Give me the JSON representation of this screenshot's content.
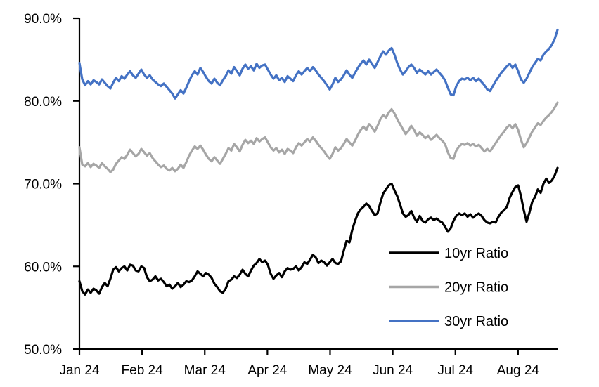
{
  "chart_data": {
    "type": "line",
    "title": "",
    "xlabel": "",
    "ylabel": "",
    "x_axis": {
      "unit": "trading days, Jan 2024 through late Aug 2024, uniform spacing",
      "range_months": [
        0,
        7.63
      ],
      "ticks": [
        {
          "month_index": 0,
          "label": "Jan 24"
        },
        {
          "month_index": 1,
          "label": "Feb 24"
        },
        {
          "month_index": 2,
          "label": "Mar 24"
        },
        {
          "month_index": 3,
          "label": "Apr 24"
        },
        {
          "month_index": 4,
          "label": "May 24"
        },
        {
          "month_index": 5,
          "label": "Jun 24"
        },
        {
          "month_index": 6,
          "label": "Jul 24"
        },
        {
          "month_index": 7,
          "label": "Aug 24"
        }
      ]
    },
    "y_axis": {
      "ylim": [
        50,
        90
      ],
      "ticks": [
        {
          "value": 50,
          "label": "50.0%"
        },
        {
          "value": 60,
          "label": "60.0%"
        },
        {
          "value": 70,
          "label": "70.0%"
        },
        {
          "value": 80,
          "label": "80.0%"
        },
        {
          "value": 90,
          "label": "90.0%"
        }
      ],
      "grid": false
    },
    "legend": {
      "position": "inside lower right",
      "entries": [
        {
          "name": "10yr Ratio",
          "color": "#000000"
        },
        {
          "name": "20yr Ratio",
          "color": "#A6A6A6"
        },
        {
          "name": "30yr Ratio",
          "color": "#4472C4"
        }
      ]
    },
    "series": [
      {
        "name": "10yr Ratio",
        "color": "#000000",
        "values": [
          58.2,
          57.0,
          56.6,
          57.2,
          56.8,
          57.3,
          57.1,
          56.7,
          57.5,
          58.0,
          57.6,
          58.5,
          59.6,
          59.9,
          59.4,
          59.8,
          60.0,
          59.5,
          60.2,
          60.1,
          59.5,
          59.4,
          60.0,
          59.8,
          58.7,
          58.2,
          58.4,
          58.8,
          58.3,
          58.5,
          58.1,
          57.6,
          57.8,
          57.3,
          57.6,
          58.0,
          57.5,
          57.8,
          58.2,
          58.1,
          58.3,
          58.8,
          59.4,
          59.1,
          58.8,
          59.2,
          59.0,
          58.6,
          57.9,
          57.5,
          57.0,
          56.8,
          57.3,
          58.2,
          58.4,
          58.8,
          58.6,
          59.0,
          59.6,
          59.1,
          58.8,
          59.5,
          60.1,
          60.4,
          60.9,
          60.5,
          60.7,
          60.2,
          59.1,
          58.5,
          58.9,
          59.2,
          58.7,
          59.4,
          59.8,
          59.6,
          59.7,
          60.0,
          59.5,
          59.9,
          60.5,
          60.3,
          60.8,
          61.4,
          61.1,
          60.4,
          60.7,
          60.5,
          60.1,
          60.5,
          60.9,
          60.4,
          60.3,
          60.6,
          61.9,
          63.1,
          62.9,
          64.4,
          65.5,
          66.4,
          66.9,
          67.2,
          67.6,
          67.3,
          66.7,
          66.2,
          66.4,
          67.7,
          68.8,
          69.3,
          69.8,
          70.0,
          69.2,
          68.5,
          67.5,
          66.4,
          66.0,
          66.2,
          66.7,
          65.9,
          65.4,
          66.1,
          65.5,
          65.3,
          65.7,
          65.9,
          65.6,
          65.8,
          65.5,
          65.3,
          64.8,
          64.2,
          64.6,
          65.5,
          66.1,
          66.4,
          66.2,
          66.4,
          66.0,
          66.3,
          65.9,
          66.2,
          66.4,
          66.1,
          65.6,
          65.3,
          65.2,
          65.4,
          65.3,
          66.0,
          66.5,
          66.8,
          67.2,
          68.3,
          69.0,
          69.6,
          69.8,
          68.5,
          66.8,
          65.4,
          66.5,
          67.8,
          68.4,
          69.3,
          68.9,
          70.0,
          70.6,
          70.1,
          70.4,
          71.0,
          71.9
        ]
      },
      {
        "name": "20yr Ratio",
        "color": "#A6A6A6",
        "values": [
          74.4,
          72.3,
          72.1,
          72.5,
          72.0,
          72.4,
          72.2,
          71.9,
          72.5,
          72.1,
          71.8,
          71.4,
          71.7,
          72.4,
          72.8,
          73.2,
          73.0,
          73.5,
          74.1,
          73.7,
          73.3,
          73.6,
          74.2,
          73.8,
          73.4,
          73.7,
          73.1,
          72.7,
          72.3,
          72.0,
          72.2,
          71.8,
          71.6,
          71.9,
          71.5,
          71.8,
          72.3,
          71.9,
          72.6,
          73.4,
          74.0,
          74.5,
          74.2,
          74.6,
          74.1,
          73.5,
          73.0,
          72.7,
          73.2,
          72.8,
          72.4,
          73.0,
          73.6,
          74.3,
          74.0,
          74.8,
          74.4,
          73.9,
          74.7,
          75.3,
          74.9,
          75.2,
          74.8,
          75.5,
          75.1,
          75.4,
          75.6,
          75.0,
          74.4,
          74.0,
          74.3,
          73.8,
          74.1,
          73.6,
          74.2,
          74.0,
          73.7,
          74.4,
          74.9,
          74.6,
          75.0,
          75.4,
          75.1,
          75.6,
          75.2,
          74.7,
          74.3,
          73.9,
          73.4,
          73.0,
          73.6,
          74.4,
          74.0,
          74.3,
          74.8,
          75.4,
          75.0,
          74.6,
          75.2,
          75.9,
          76.5,
          76.9,
          76.5,
          77.2,
          76.8,
          76.3,
          77.0,
          77.8,
          78.3,
          78.0,
          78.6,
          79.0,
          78.5,
          77.8,
          77.2,
          76.6,
          76.0,
          76.4,
          77.0,
          76.5,
          75.8,
          76.2,
          75.9,
          75.5,
          75.8,
          75.3,
          75.6,
          75.9,
          75.5,
          75.2,
          74.8,
          73.8,
          73.1,
          73.0,
          74.0,
          74.5,
          74.8,
          74.7,
          74.9,
          74.6,
          74.8,
          74.5,
          74.7,
          74.3,
          73.9,
          74.2,
          73.9,
          74.4,
          74.9,
          75.4,
          75.9,
          76.3,
          76.8,
          77.1,
          76.7,
          77.2,
          76.5,
          75.3,
          74.4,
          74.9,
          75.6,
          76.3,
          76.8,
          77.3,
          77.1,
          77.6,
          78.0,
          78.3,
          78.7,
          79.2,
          79.8
        ]
      },
      {
        "name": "30yr Ratio",
        "color": "#4472C4",
        "values": [
          84.6,
          82.6,
          81.9,
          82.4,
          82.0,
          82.5,
          82.3,
          82.0,
          82.6,
          82.2,
          81.8,
          81.5,
          82.2,
          82.8,
          82.4,
          83.0,
          82.7,
          83.2,
          83.6,
          83.1,
          82.8,
          83.3,
          83.8,
          83.2,
          82.8,
          83.1,
          82.6,
          82.3,
          82.0,
          81.8,
          82.1,
          81.7,
          81.3,
          80.9,
          80.3,
          80.8,
          81.3,
          80.9,
          81.6,
          82.4,
          83.1,
          83.6,
          83.2,
          84.0,
          83.5,
          82.9,
          82.4,
          82.1,
          82.7,
          82.2,
          81.9,
          82.5,
          83.0,
          83.7,
          83.3,
          84.1,
          83.6,
          83.1,
          83.9,
          84.4,
          83.9,
          84.2,
          83.7,
          84.5,
          84.0,
          84.3,
          84.4,
          83.8,
          83.2,
          82.7,
          83.1,
          82.5,
          82.8,
          82.3,
          83.0,
          82.7,
          82.4,
          83.1,
          83.6,
          83.2,
          83.6,
          84.0,
          83.6,
          84.1,
          83.7,
          83.2,
          82.8,
          82.4,
          81.9,
          81.4,
          82.0,
          82.8,
          82.3,
          82.6,
          83.1,
          83.7,
          83.2,
          82.8,
          83.4,
          84.0,
          84.5,
          84.9,
          84.4,
          85.0,
          84.5,
          84.0,
          84.7,
          85.4,
          86.0,
          85.6,
          86.1,
          86.4,
          85.6,
          84.6,
          83.8,
          83.2,
          83.6,
          84.1,
          84.4,
          84.0,
          83.4,
          83.8,
          83.5,
          83.2,
          83.6,
          83.2,
          83.5,
          83.8,
          83.4,
          83.0,
          82.5,
          81.6,
          80.8,
          80.7,
          81.8,
          82.4,
          82.7,
          82.6,
          82.8,
          82.5,
          82.8,
          82.4,
          82.7,
          82.3,
          81.9,
          81.4,
          81.2,
          81.8,
          82.4,
          82.9,
          83.4,
          83.8,
          84.2,
          84.5,
          84.0,
          84.4,
          83.6,
          82.6,
          82.2,
          82.7,
          83.4,
          84.1,
          84.6,
          85.1,
          84.9,
          85.6,
          86.0,
          86.3,
          86.8,
          87.5,
          88.6
        ]
      }
    ]
  }
}
